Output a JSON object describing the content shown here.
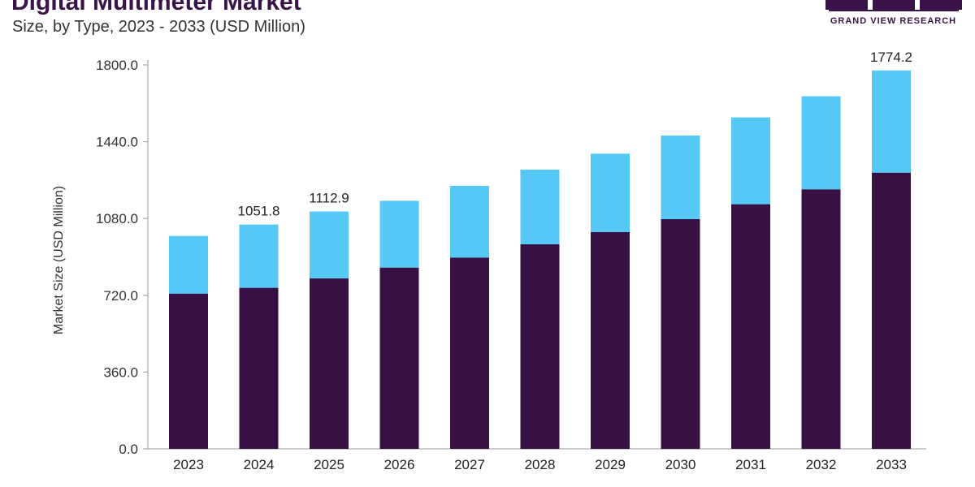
{
  "header": {
    "title": "Digital Multimeter Market",
    "subtitle": "Size, by Type, 2023 - 2033 (USD Million)"
  },
  "logo": {
    "text": "GRAND VIEW RESEARCH"
  },
  "colors": {
    "series_bottom": "#371143",
    "series_top": "#56c8f5",
    "axis": "#999999",
    "text": "#222222",
    "brand": "#3a1448"
  },
  "chart_data": {
    "type": "bar",
    "stacked": true,
    "categories": [
      "2023",
      "2024",
      "2025",
      "2026",
      "2027",
      "2028",
      "2029",
      "2030",
      "2031",
      "2032",
      "2033"
    ],
    "series": [
      {
        "values": [
          728,
          755,
          799,
          850,
          897,
          959,
          1017,
          1077,
          1147,
          1217,
          1295
        ]
      },
      {
        "values": [
          270,
          296.8,
          313.9,
          313,
          336,
          350,
          367,
          392,
          407,
          436,
          479.2
        ]
      }
    ],
    "totals": [
      998,
      1051.8,
      1112.9,
      1163,
      1233,
      1309,
      1384,
      1469,
      1554,
      1653,
      1774.2
    ],
    "data_labels": [
      {
        "category": "2024",
        "label": "1051.8"
      },
      {
        "category": "2025",
        "label": "1112.9"
      },
      {
        "category": "2033",
        "label": "1774.2"
      }
    ],
    "ylabel": "Market Size (USD Million)",
    "xlabel": "",
    "ylim": [
      0,
      1800
    ],
    "yticks": [
      "0.0",
      "360.0",
      "720.0",
      "1080.0",
      "1440.0",
      "1800.0"
    ],
    "ytick_values": [
      0,
      360,
      720,
      1080,
      1440,
      1800
    ],
    "grid": false,
    "legend": "none"
  }
}
